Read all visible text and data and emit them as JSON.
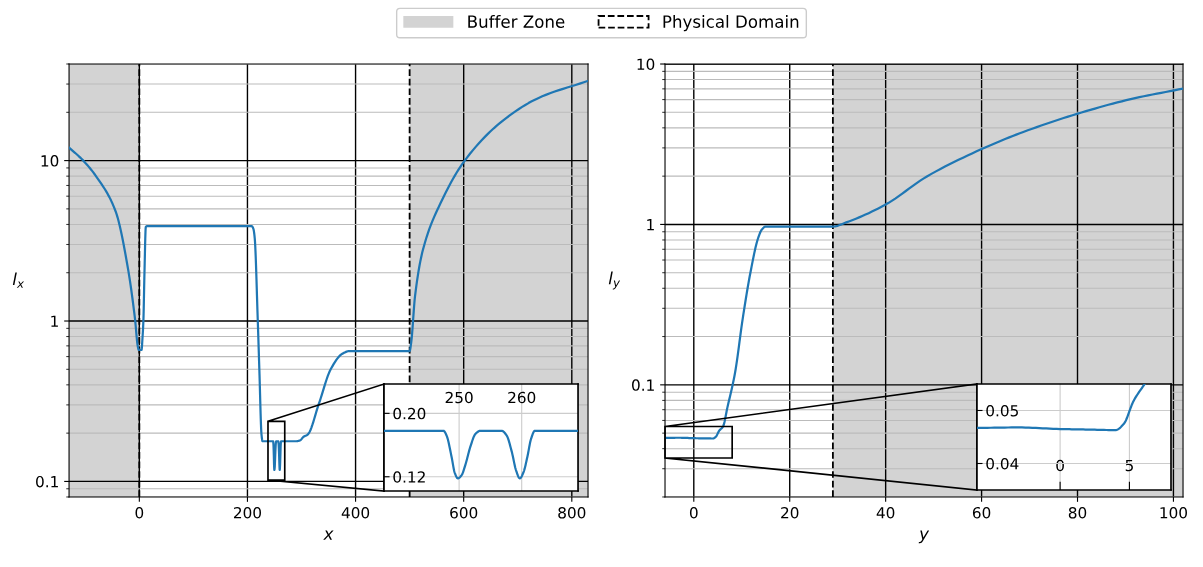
{
  "chart_data": [
    {
      "type": "line",
      "xlabel": "x",
      "ylabel": "l$_{x}$",
      "xlim": [
        -130,
        830
      ],
      "ylim": [
        0.08,
        40
      ],
      "xticks": [
        0,
        200,
        400,
        600,
        800
      ],
      "yticks": [
        0.1,
        1,
        10
      ],
      "log": "y",
      "grid": true,
      "legend": "top",
      "x": [
        -130,
        -105,
        -79,
        -43.6,
        -22,
        -8,
        -3,
        -1,
        4,
        6,
        7.5,
        9.5,
        12,
        14,
        208,
        211,
        213.5,
        219,
        222,
        226,
        228,
        238,
        247.5,
        248,
        248.8,
        249.3,
        249.8,
        250.4,
        251,
        251.8,
        252.6,
        253.4,
        256.8,
        257.6,
        258.4,
        259.1,
        259.7,
        260.3,
        260.9,
        261.5,
        262.1,
        290,
        297,
        304,
        311.5,
        332,
        354,
        375.5,
        389,
        500,
        503,
        510,
        524.5,
        560,
        600.6,
        666.7,
        737.7,
        830
      ],
      "series": [
        {
          "color": "#1f77b4",
          "values": [
            12.05,
            10.1,
            7.9,
            4.8,
            2.22,
            1.03,
            0.7,
            0.66,
            0.66,
            0.8,
            1.0,
            2.0,
            3.86,
            3.9,
            3.9,
            3.75,
            3.27,
            1.03,
            0.5,
            0.196,
            0.178,
            0.178,
            0.178,
            0.172,
            0.145,
            0.125,
            0.118,
            0.122,
            0.135,
            0.158,
            0.174,
            0.178,
            0.178,
            0.172,
            0.152,
            0.128,
            0.118,
            0.126,
            0.145,
            0.168,
            0.178,
            0.178,
            0.18,
            0.19,
            0.196,
            0.304,
            0.5,
            0.625,
            0.65,
            0.65,
            0.74,
            1.43,
            2.77,
            5.68,
            9.86,
            17.1,
            24.5,
            31.4
          ]
        }
      ],
      "bands": [
        {
          "axis": "x",
          "from": -130,
          "to": 0,
          "label": "Buffer Zone",
          "color": "#d3d3d3"
        },
        {
          "axis": "x",
          "from": 500,
          "to": 830,
          "color": "#d3d3d3"
        }
      ],
      "ref_lines": [
        {
          "axis": "x",
          "value": 0,
          "label": "Physical Domain",
          "line_style": "dashed"
        },
        {
          "axis": "x",
          "value": 500,
          "line_style": "dashed"
        }
      ]
    },
    {
      "type": "line",
      "xlim": [
        238,
        269
      ],
      "ylim": [
        0.102,
        0.237
      ],
      "xticks": [
        250,
        260
      ],
      "yticks": [
        {
          "value": 0.2,
          "label": "0.20"
        },
        {
          "value": 0.12,
          "label": "0.12"
        }
      ],
      "grid": true,
      "x": [
        238,
        247.5,
        248,
        248.8,
        249.3,
        249.8,
        250.4,
        251,
        251.8,
        252.6,
        253.4,
        256.8,
        257.6,
        258.4,
        259.1,
        259.7,
        260.3,
        260.9,
        261.5,
        262.1,
        269
      ],
      "series": [
        {
          "color": "#1f77b4",
          "values": [
            0.178,
            0.178,
            0.172,
            0.145,
            0.125,
            0.118,
            0.122,
            0.135,
            0.158,
            0.174,
            0.178,
            0.178,
            0.172,
            0.152,
            0.128,
            0.118,
            0.126,
            0.145,
            0.168,
            0.178,
            0.178
          ]
        }
      ]
    },
    {
      "type": "line",
      "xlabel": "y",
      "ylabel": "l$_{y}$",
      "xlim": [
        -6,
        102
      ],
      "ylim": [
        0.02,
        10
      ],
      "xticks": [
        0,
        20,
        40,
        60,
        80,
        100
      ],
      "yticks": [
        0.1,
        1,
        10
      ],
      "log": "y",
      "grid": true,
      "x": [
        -6,
        -3,
        0,
        2,
        4,
        4.6,
        5.3,
        6.1,
        7,
        8.6,
        10.2,
        11.8,
        13.4,
        14.2,
        15,
        29,
        31.8,
        39.8,
        48.6,
        59.9,
        68.7,
        79.9,
        91.1,
        102
      ],
      "series": [
        {
          "color": "#1f77b4",
          "values": [
            0.0467,
            0.0468,
            0.0465,
            0.0464,
            0.0463,
            0.0475,
            0.0518,
            0.055,
            0.0721,
            0.119,
            0.259,
            0.5,
            0.82,
            0.93,
            0.97,
            0.97,
            1.03,
            1.32,
            1.99,
            2.94,
            3.77,
            4.89,
            6.04,
            7.03
          ]
        }
      ],
      "bands": [
        {
          "axis": "x",
          "from": 29,
          "to": 102,
          "color": "#d3d3d3"
        }
      ],
      "ref_lines": [
        {
          "axis": "x",
          "value": 29,
          "line_style": "dashed"
        }
      ]
    },
    {
      "type": "line",
      "xlim": [
        -6,
        8
      ],
      "ylim": [
        0.035,
        0.055
      ],
      "xticks": [
        0,
        5
      ],
      "yticks": [
        0.05,
        0.04
      ],
      "grid": true,
      "x": [
        -6,
        -3,
        0,
        2,
        4,
        4.6,
        5.3,
        6.1
      ],
      "series": [
        {
          "color": "#1f77b4",
          "values": [
            0.0467,
            0.0468,
            0.0465,
            0.0464,
            0.0463,
            0.0475,
            0.0518,
            0.055
          ]
        }
      ]
    }
  ]
}
